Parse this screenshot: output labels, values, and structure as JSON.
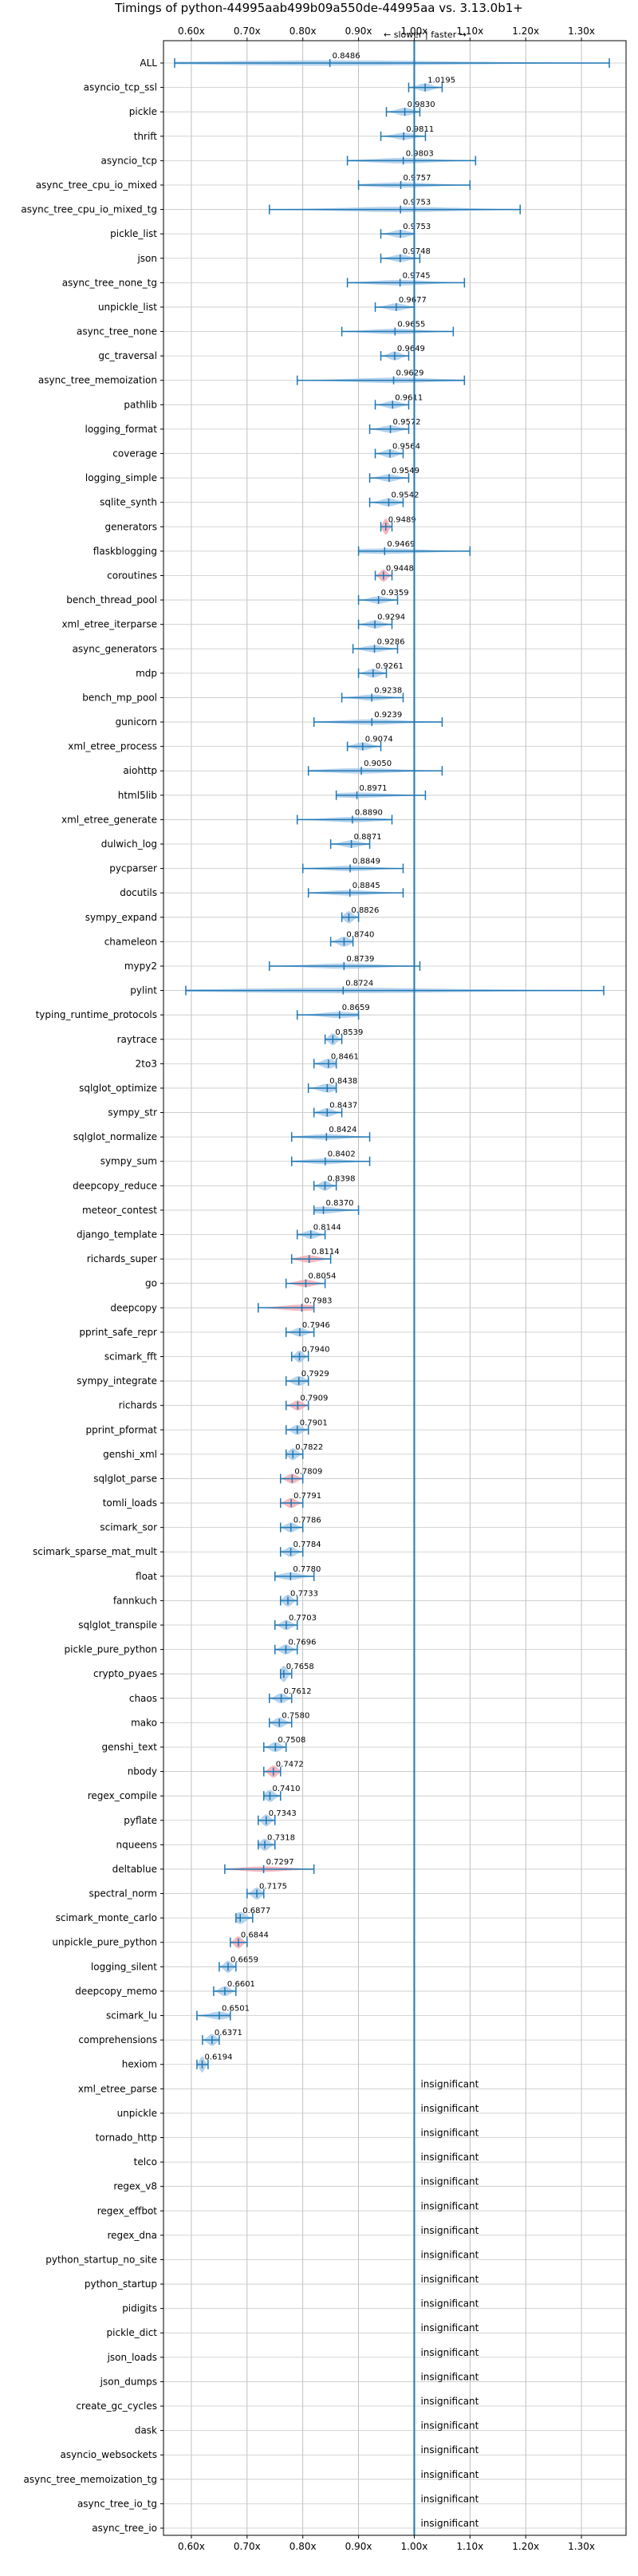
{
  "chart_data": {
    "type": "violin",
    "title": "Timings of python-44995aab499b09a550de-44995aa vs. 3.13.0b1+",
    "direction_note": "← slower | faster →",
    "xlim": [
      0.55,
      1.38
    ],
    "x_ticks": [
      0.6,
      0.7,
      0.8,
      0.9,
      1.0,
      1.1,
      1.2,
      1.3
    ],
    "x_tick_labels": [
      "0.60x",
      "0.70x",
      "0.80x",
      "0.90x",
      "1.00x",
      "1.10x",
      "1.20x",
      "1.30x"
    ],
    "reference_line": 1.0,
    "grid": true,
    "colors": {
      "faster": "#9fc4e6",
      "slower": "#f2a0a8",
      "line": "#1f77b4"
    },
    "benchmarks": [
      {
        "name": "ALL",
        "value": 0.8486,
        "min": 0.57,
        "max": 1.35
      },
      {
        "name": "asyncio_tcp_ssl",
        "value": 1.0195,
        "min": 0.99,
        "max": 1.05
      },
      {
        "name": "pickle",
        "value": 0.983,
        "min": 0.95,
        "max": 1.01
      },
      {
        "name": "thrift",
        "value": 0.9811,
        "min": 0.94,
        "max": 1.02
      },
      {
        "name": "asyncio_tcp",
        "value": 0.9803,
        "min": 0.88,
        "max": 1.11
      },
      {
        "name": "async_tree_cpu_io_mixed",
        "value": 0.9757,
        "min": 0.9,
        "max": 1.1
      },
      {
        "name": "async_tree_cpu_io_mixed_tg",
        "value": 0.9753,
        "min": 0.74,
        "max": 1.19
      },
      {
        "name": "pickle_list",
        "value": 0.9753,
        "min": 0.94,
        "max": 1.0
      },
      {
        "name": "json",
        "value": 0.9748,
        "min": 0.94,
        "max": 1.01
      },
      {
        "name": "async_tree_none_tg",
        "value": 0.9745,
        "min": 0.88,
        "max": 1.09
      },
      {
        "name": "unpickle_list",
        "value": 0.9677,
        "min": 0.93,
        "max": 1.0
      },
      {
        "name": "async_tree_none",
        "value": 0.9655,
        "min": 0.87,
        "max": 1.07
      },
      {
        "name": "gc_traversal",
        "value": 0.9649,
        "min": 0.94,
        "max": 0.99
      },
      {
        "name": "async_tree_memoization",
        "value": 0.9629,
        "min": 0.79,
        "max": 1.09
      },
      {
        "name": "pathlib",
        "value": 0.9611,
        "min": 0.93,
        "max": 0.99
      },
      {
        "name": "logging_format",
        "value": 0.9572,
        "min": 0.92,
        "max": 0.99
      },
      {
        "name": "coverage",
        "value": 0.9564,
        "min": 0.93,
        "max": 0.98
      },
      {
        "name": "logging_simple",
        "value": 0.9549,
        "min": 0.92,
        "max": 0.99
      },
      {
        "name": "sqlite_synth",
        "value": 0.9542,
        "min": 0.92,
        "max": 0.98
      },
      {
        "name": "generators",
        "value": 0.9489,
        "min": 0.94,
        "max": 0.96,
        "slower": true
      },
      {
        "name": "flaskblogging",
        "value": 0.9469,
        "min": 0.9,
        "max": 1.1
      },
      {
        "name": "coroutines",
        "value": 0.9448,
        "min": 0.93,
        "max": 0.96,
        "slower": true
      },
      {
        "name": "bench_thread_pool",
        "value": 0.9359,
        "min": 0.9,
        "max": 0.97
      },
      {
        "name": "xml_etree_iterparse",
        "value": 0.9294,
        "min": 0.9,
        "max": 0.96
      },
      {
        "name": "async_generators",
        "value": 0.9286,
        "min": 0.89,
        "max": 0.97
      },
      {
        "name": "mdp",
        "value": 0.9261,
        "min": 0.9,
        "max": 0.95
      },
      {
        "name": "bench_mp_pool",
        "value": 0.9238,
        "min": 0.87,
        "max": 0.98
      },
      {
        "name": "gunicorn",
        "value": 0.9239,
        "min": 0.82,
        "max": 1.05
      },
      {
        "name": "xml_etree_process",
        "value": 0.9074,
        "min": 0.88,
        "max": 0.94
      },
      {
        "name": "aiohttp",
        "value": 0.905,
        "min": 0.81,
        "max": 1.05
      },
      {
        "name": "html5lib",
        "value": 0.8971,
        "min": 0.86,
        "max": 1.02
      },
      {
        "name": "xml_etree_generate",
        "value": 0.889,
        "min": 0.79,
        "max": 0.96
      },
      {
        "name": "dulwich_log",
        "value": 0.8871,
        "min": 0.85,
        "max": 0.92
      },
      {
        "name": "pycparser",
        "value": 0.8849,
        "min": 0.8,
        "max": 0.98
      },
      {
        "name": "docutils",
        "value": 0.8845,
        "min": 0.81,
        "max": 0.98
      },
      {
        "name": "sympy_expand",
        "value": 0.8826,
        "min": 0.87,
        "max": 0.9
      },
      {
        "name": "chameleon",
        "value": 0.874,
        "min": 0.85,
        "max": 0.89
      },
      {
        "name": "mypy2",
        "value": 0.8739,
        "min": 0.74,
        "max": 1.01
      },
      {
        "name": "pylint",
        "value": 0.8724,
        "min": 0.59,
        "max": 1.34
      },
      {
        "name": "typing_runtime_protocols",
        "value": 0.8659,
        "min": 0.79,
        "max": 0.9
      },
      {
        "name": "raytrace",
        "value": 0.8539,
        "min": 0.84,
        "max": 0.87
      },
      {
        "name": "2to3",
        "value": 0.8461,
        "min": 0.82,
        "max": 0.86
      },
      {
        "name": "sqlglot_optimize",
        "value": 0.8438,
        "min": 0.81,
        "max": 0.86
      },
      {
        "name": "sympy_str",
        "value": 0.8437,
        "min": 0.82,
        "max": 0.87
      },
      {
        "name": "sqlglot_normalize",
        "value": 0.8424,
        "min": 0.78,
        "max": 0.92
      },
      {
        "name": "sympy_sum",
        "value": 0.8402,
        "min": 0.78,
        "max": 0.92
      },
      {
        "name": "deepcopy_reduce",
        "value": 0.8398,
        "min": 0.82,
        "max": 0.86
      },
      {
        "name": "meteor_contest",
        "value": 0.837,
        "min": 0.82,
        "max": 0.9
      },
      {
        "name": "django_template",
        "value": 0.8144,
        "min": 0.79,
        "max": 0.84
      },
      {
        "name": "richards_super",
        "value": 0.8114,
        "min": 0.78,
        "max": 0.85,
        "slower": true
      },
      {
        "name": "go",
        "value": 0.8054,
        "min": 0.77,
        "max": 0.84,
        "slower": true
      },
      {
        "name": "deepcopy",
        "value": 0.7983,
        "min": 0.72,
        "max": 0.82,
        "slower": true
      },
      {
        "name": "pprint_safe_repr",
        "value": 0.7946,
        "min": 0.77,
        "max": 0.82
      },
      {
        "name": "scimark_fft",
        "value": 0.794,
        "min": 0.78,
        "max": 0.81
      },
      {
        "name": "sympy_integrate",
        "value": 0.7929,
        "min": 0.77,
        "max": 0.81
      },
      {
        "name": "richards",
        "value": 0.7909,
        "min": 0.77,
        "max": 0.81,
        "slower": true
      },
      {
        "name": "pprint_pformat",
        "value": 0.7901,
        "min": 0.77,
        "max": 0.81
      },
      {
        "name": "genshi_xml",
        "value": 0.7822,
        "min": 0.77,
        "max": 0.8
      },
      {
        "name": "sqlglot_parse",
        "value": 0.7809,
        "min": 0.76,
        "max": 0.8,
        "slower": true
      },
      {
        "name": "tomli_loads",
        "value": 0.7791,
        "min": 0.76,
        "max": 0.8,
        "slower": true
      },
      {
        "name": "scimark_sor",
        "value": 0.7786,
        "min": 0.76,
        "max": 0.8
      },
      {
        "name": "scimark_sparse_mat_mult",
        "value": 0.7784,
        "min": 0.76,
        "max": 0.8
      },
      {
        "name": "float",
        "value": 0.778,
        "min": 0.75,
        "max": 0.82
      },
      {
        "name": "fannkuch",
        "value": 0.7733,
        "min": 0.76,
        "max": 0.79
      },
      {
        "name": "sqlglot_transpile",
        "value": 0.7703,
        "min": 0.75,
        "max": 0.79
      },
      {
        "name": "pickle_pure_python",
        "value": 0.7696,
        "min": 0.75,
        "max": 0.79
      },
      {
        "name": "crypto_pyaes",
        "value": 0.7658,
        "min": 0.76,
        "max": 0.78
      },
      {
        "name": "chaos",
        "value": 0.7612,
        "min": 0.74,
        "max": 0.78
      },
      {
        "name": "mako",
        "value": 0.758,
        "min": 0.74,
        "max": 0.78
      },
      {
        "name": "genshi_text",
        "value": 0.7508,
        "min": 0.73,
        "max": 0.77
      },
      {
        "name": "nbody",
        "value": 0.7472,
        "min": 0.73,
        "max": 0.76,
        "slower": true
      },
      {
        "name": "regex_compile",
        "value": 0.741,
        "min": 0.73,
        "max": 0.76
      },
      {
        "name": "pyflate",
        "value": 0.7343,
        "min": 0.72,
        "max": 0.75
      },
      {
        "name": "nqueens",
        "value": 0.7318,
        "min": 0.72,
        "max": 0.75
      },
      {
        "name": "deltablue",
        "value": 0.7297,
        "min": 0.66,
        "max": 0.82,
        "slower": true
      },
      {
        "name": "spectral_norm",
        "value": 0.7175,
        "min": 0.7,
        "max": 0.73
      },
      {
        "name": "scimark_monte_carlo",
        "value": 0.6877,
        "min": 0.68,
        "max": 0.71
      },
      {
        "name": "unpickle_pure_python",
        "value": 0.6844,
        "min": 0.67,
        "max": 0.7,
        "slower": true
      },
      {
        "name": "logging_silent",
        "value": 0.6659,
        "min": 0.65,
        "max": 0.68
      },
      {
        "name": "deepcopy_memo",
        "value": 0.6601,
        "min": 0.64,
        "max": 0.68
      },
      {
        "name": "scimark_lu",
        "value": 0.6501,
        "min": 0.61,
        "max": 0.67
      },
      {
        "name": "comprehensions",
        "value": 0.6371,
        "min": 0.62,
        "max": 0.65
      },
      {
        "name": "hexiom",
        "value": 0.6194,
        "min": 0.61,
        "max": 0.63
      },
      {
        "name": "xml_etree_parse",
        "insignificant": true
      },
      {
        "name": "unpickle",
        "insignificant": true
      },
      {
        "name": "tornado_http",
        "insignificant": true
      },
      {
        "name": "telco",
        "insignificant": true
      },
      {
        "name": "regex_v8",
        "insignificant": true
      },
      {
        "name": "regex_effbot",
        "insignificant": true
      },
      {
        "name": "regex_dna",
        "insignificant": true
      },
      {
        "name": "python_startup_no_site",
        "insignificant": true
      },
      {
        "name": "python_startup",
        "insignificant": true
      },
      {
        "name": "pidigits",
        "insignificant": true
      },
      {
        "name": "pickle_dict",
        "insignificant": true
      },
      {
        "name": "json_loads",
        "insignificant": true
      },
      {
        "name": "json_dumps",
        "insignificant": true
      },
      {
        "name": "create_gc_cycles",
        "insignificant": true
      },
      {
        "name": "dask",
        "insignificant": true
      },
      {
        "name": "asyncio_websockets",
        "insignificant": true
      },
      {
        "name": "async_tree_memoization_tg",
        "insignificant": true
      },
      {
        "name": "async_tree_io_tg",
        "insignificant": true
      },
      {
        "name": "async_tree_io",
        "insignificant": true
      }
    ],
    "insignificant_label": "insignificant"
  }
}
